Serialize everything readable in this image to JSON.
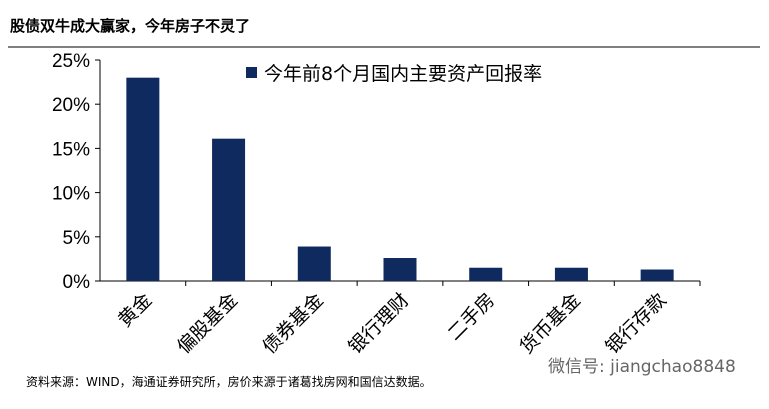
{
  "chart_data": {
    "type": "bar",
    "title": "股债双牛成大赢家，今年房子不灵了",
    "series": [
      {
        "name": "今年前8个月国内主要资产回报率",
        "color": "#0f2a5e",
        "values": [
          23,
          16.1,
          3.9,
          2.6,
          1.5,
          1.5,
          1.3
        ]
      }
    ],
    "categories": [
      "黄金",
      "偏股基金",
      "债券基金",
      "银行理财",
      "二手房",
      "货币基金",
      "银行存款"
    ],
    "ylim": [
      0,
      25
    ],
    "yticks": [
      {
        "value": 0,
        "label": "0%"
      },
      {
        "value": 5,
        "label": "5%"
      },
      {
        "value": 10,
        "label": "10%"
      },
      {
        "value": 15,
        "label": "15%"
      },
      {
        "value": 20,
        "label": "20%"
      },
      {
        "value": 25,
        "label": "25%"
      }
    ],
    "source": "资料来源：WIND，海通证券研究所，房价来源于诸葛找房网和国信达数据。",
    "watermark": "微信号: jiangchao8848"
  }
}
